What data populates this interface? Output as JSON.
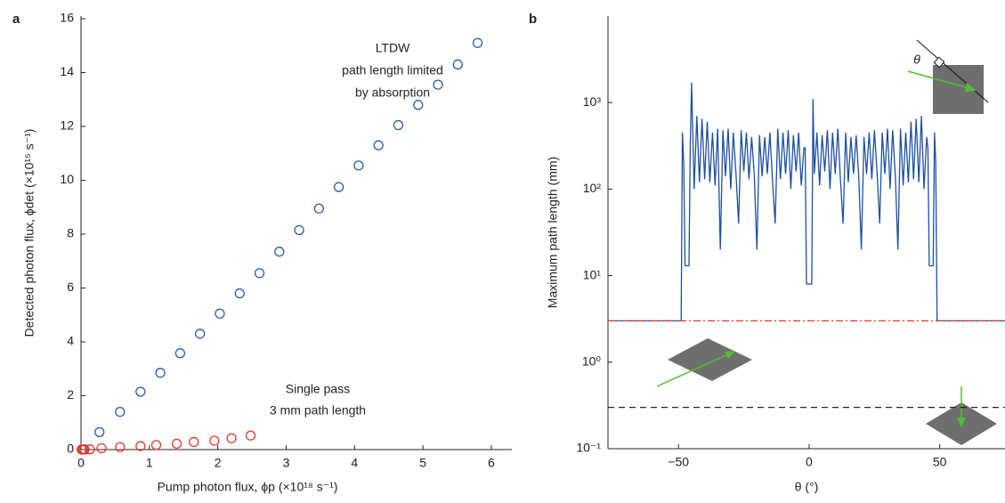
{
  "chart_data": [
    {
      "type": "scatter",
      "panel": "a",
      "xlabel": "Pump photon flux, ϕp (×10¹⁸ s⁻¹)",
      "ylabel": "Detected photon flux, ϕdet (×10¹⁵ s⁻¹)",
      "xlim": [
        0,
        6.3
      ],
      "ylim": [
        0,
        16.1
      ],
      "xticks": [
        0,
        1,
        2,
        3,
        4,
        5,
        6
      ],
      "yticks": [
        0,
        2,
        4,
        6,
        8,
        10,
        12,
        14,
        16
      ],
      "annotations": [
        {
          "text": "LTDW",
          "color": "#2a5ca8"
        },
        {
          "text": "path length limited",
          "color": "#2a5ca8"
        },
        {
          "text": "by absorption",
          "color": "#2a5ca8"
        },
        {
          "text": "Single pass",
          "color": "#e0392b"
        },
        {
          "text": "3 mm path length",
          "color": "#e0392b"
        }
      ],
      "series": [
        {
          "color": "#2a5ca8",
          "x": [
            0.02,
            0.05,
            0.27,
            0.57,
            0.87,
            1.16,
            1.45,
            1.74,
            2.03,
            2.32,
            2.61,
            2.9,
            3.19,
            3.48,
            3.77,
            4.06,
            4.35,
            4.64,
            4.93,
            5.22,
            5.51,
            5.8
          ],
          "values": [
            0,
            0.01,
            0.65,
            1.4,
            2.15,
            2.85,
            3.58,
            4.3,
            5.05,
            5.8,
            6.55,
            7.35,
            8.15,
            8.95,
            9.75,
            10.55,
            11.3,
            12.05,
            12.8,
            13.55,
            14.3,
            15.1
          ]
        },
        {
          "color": "#e0392b",
          "x": [
            0.01,
            0.03,
            0.05,
            0.13,
            0.3,
            0.57,
            0.87,
            1.1,
            1.4,
            1.65,
            1.95,
            2.2,
            2.48
          ],
          "values": [
            0,
            0,
            0,
            0.01,
            0.05,
            0.09,
            0.13,
            0.17,
            0.22,
            0.28,
            0.33,
            0.42,
            0.52
          ]
        }
      ]
    },
    {
      "type": "line",
      "panel": "b",
      "xlabel": "θ (°)",
      "ylabel": "Maximum path length (mm)",
      "xlim": [
        -77,
        75
      ],
      "ylim": [
        0.1,
        10000
      ],
      "log_y": true,
      "xticks": [
        {
          "value": -50,
          "label": "−50"
        },
        0,
        50
      ],
      "yticks": [
        {
          "value": 0.1,
          "label": "10⁻¹"
        },
        {
          "value": 1,
          "label": "10⁰"
        },
        {
          "value": 10,
          "label": "10¹"
        },
        {
          "value": 100,
          "label": "10²"
        },
        {
          "value": 1000,
          "label": "10³"
        }
      ],
      "annotations": [
        {
          "text": "θ",
          "color": "#222"
        }
      ],
      "series": [
        {
          "color": "#1f4fa0",
          "dash": "none",
          "x": [
            -77,
            -49,
            -48.5,
            -48,
            -47.5,
            -46,
            -45.5,
            -45,
            -44,
            -43,
            -42,
            -41,
            -40,
            -39,
            -38,
            -37,
            -36,
            -35,
            -34,
            -33,
            -32,
            -31,
            -30,
            -29,
            -28,
            -27,
            -26,
            -25,
            -24,
            -23,
            -22,
            -21,
            -20,
            -19,
            -18,
            -17,
            -16,
            -15,
            -14,
            -13,
            -12,
            -11,
            -10,
            -9,
            -8,
            -7,
            -6,
            -5,
            -4,
            -3,
            -2,
            -1.5,
            -1,
            1,
            1.5,
            2,
            3,
            4,
            5,
            6,
            7,
            8,
            9,
            10,
            11,
            12,
            13,
            14,
            15,
            16,
            17,
            18,
            19,
            20,
            21,
            22,
            23,
            24,
            25,
            26,
            27,
            28,
            29,
            30,
            31,
            32,
            33,
            34,
            35,
            36,
            37,
            38,
            39,
            40,
            41,
            42,
            43,
            44,
            45,
            45.5,
            46,
            47.5,
            48,
            48.5,
            49,
            75
          ],
          "values": [
            3,
            3,
            450,
            200,
            13,
            13,
            300,
            1700,
            100,
            700,
            120,
            650,
            130,
            600,
            120,
            450,
            110,
            500,
            20,
            480,
            140,
            500,
            100,
            450,
            150,
            40,
            480,
            160,
            450,
            130,
            400,
            150,
            20,
            420,
            140,
            400,
            150,
            450,
            120,
            40,
            500,
            130,
            450,
            150,
            480,
            100,
            420,
            160,
            450,
            110,
            300,
            300,
            8,
            8,
            1100,
            150,
            450,
            110,
            420,
            160,
            480,
            100,
            450,
            150,
            500,
            130,
            40,
            450,
            120,
            400,
            150,
            420,
            140,
            20,
            400,
            150,
            450,
            130,
            480,
            160,
            40,
            450,
            150,
            500,
            100,
            480,
            140,
            20,
            500,
            110,
            450,
            120,
            600,
            130,
            650,
            120,
            700,
            100,
            400,
            300,
            13,
            13,
            450,
            200,
            3,
            3
          ]
        },
        {
          "color": "#e0392b",
          "dash": "8 3 2 3",
          "x": [
            -77,
            75
          ],
          "values": [
            3,
            3
          ]
        },
        {
          "color": "#222222",
          "dash": "7 5",
          "x": [
            -77,
            75
          ],
          "values": [
            0.3,
            0.3
          ]
        }
      ]
    }
  ]
}
